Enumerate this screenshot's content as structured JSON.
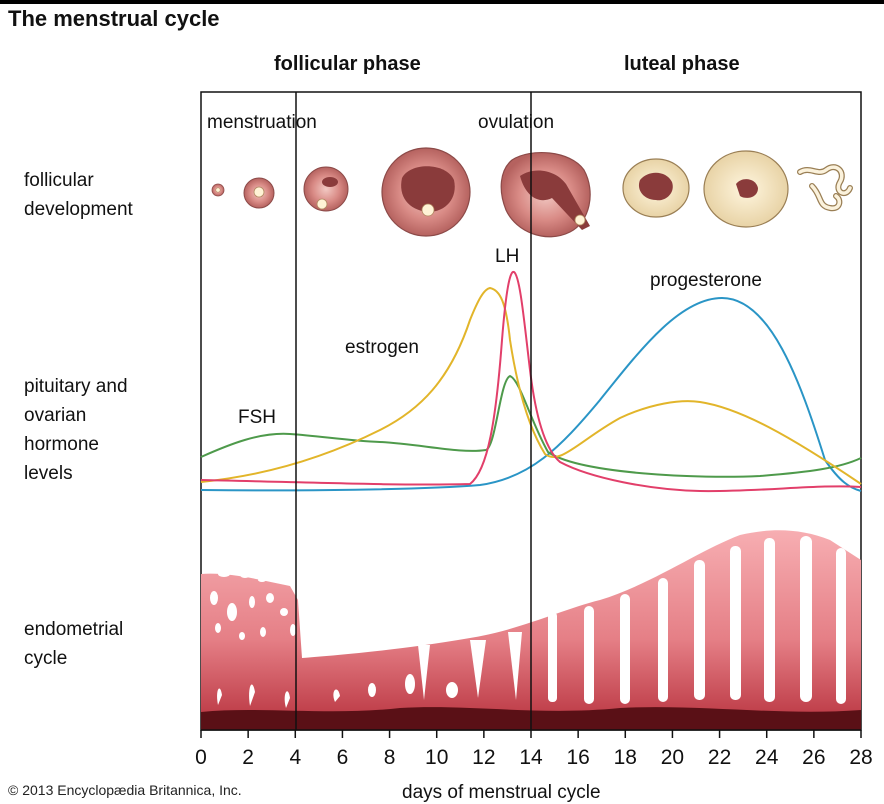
{
  "title": "The menstrual cycle",
  "phases": {
    "follicular": "follicular phase",
    "luteal": "luteal phase"
  },
  "events": {
    "menstruation": "menstruation",
    "ovulation": "ovulation"
  },
  "rows": {
    "follicular_development": "follicular\ndevelopment",
    "hormone_levels": "pituitary and\novarian\nhormone\nlevels",
    "endometrial_cycle": "endometrial\ncycle"
  },
  "hormones": {
    "lh": "LH",
    "progesterone": "progesterone",
    "estrogen": "estrogen",
    "fsh": "FSH"
  },
  "colors": {
    "lh": "#e23f6a",
    "progesterone": "#2a95c6",
    "estrogen": "#e2b52a",
    "fsh": "#4e9a4b",
    "endometrium": "#e8878d",
    "basal_layer": "#5a1016"
  },
  "x_axis": {
    "label": "days of menstrual cycle",
    "range": [
      0,
      28
    ],
    "ticks": [
      "0",
      "2",
      "4",
      "6",
      "8",
      "10",
      "12",
      "14",
      "16",
      "18",
      "20",
      "22",
      "24",
      "26",
      "28"
    ]
  },
  "copyright": "© 2013 Encyclopædia Britannica, Inc."
}
